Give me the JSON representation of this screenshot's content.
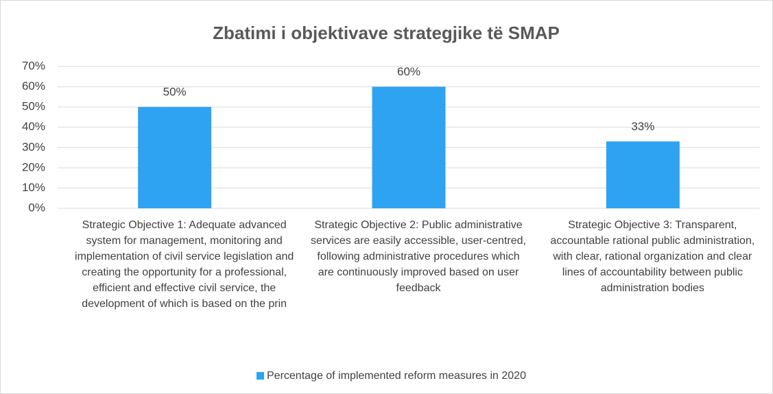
{
  "chart_data": {
    "type": "bar",
    "title": "Zbatimi i objektivave strategjike të SMAP",
    "categories": [
      "Strategic Objective 1: Adequate advanced system for management, monitoring and implementation of civil service legislation and creating the opportunity for a professional, efficient and effective civil service, the development of which is based on the prin",
      "Strategic Objective 2: Public administrative services are easily accessible, user-centred, following administrative procedures which are continuously improved based on user feedback",
      "Strategic Objective 3: Transparent, accountable rational public administration, with clear, rational organization and clear lines of accountability between public administration bodies"
    ],
    "series": [
      {
        "name": "Percentage of implemented reform measures in 2020",
        "color": "#2ea3f2",
        "values": [
          50,
          60,
          33
        ],
        "value_labels": [
          "50%",
          "60%",
          "33%"
        ]
      }
    ],
    "ylim": [
      0,
      70
    ],
    "yticks": [
      {
        "value": 0,
        "label": "0%"
      },
      {
        "value": 10,
        "label": "10%"
      },
      {
        "value": 20,
        "label": "20%"
      },
      {
        "value": 30,
        "label": "30%"
      },
      {
        "value": 40,
        "label": "40%"
      },
      {
        "value": 50,
        "label": "50%"
      },
      {
        "value": 60,
        "label": "60%"
      },
      {
        "value": 70,
        "label": "70%"
      }
    ],
    "grid": true,
    "legend": "bottom"
  }
}
